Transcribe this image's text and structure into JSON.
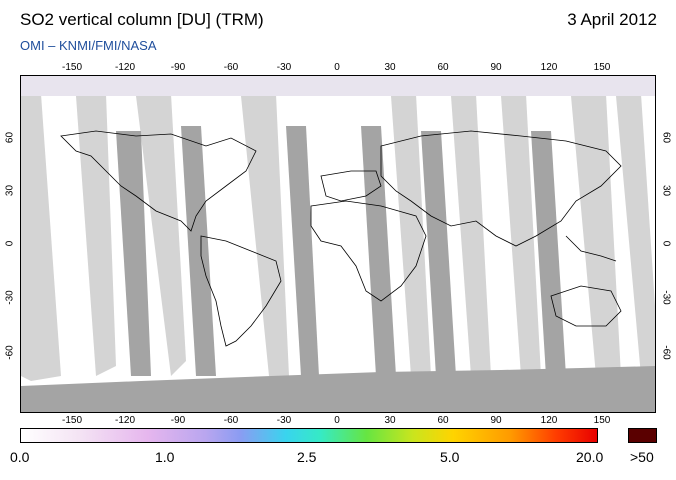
{
  "header": {
    "title": "SO2 vertical column [DU] (TRM)",
    "date": "3 April 2012",
    "credit": "OMI  –  KNMI/FMI/NASA"
  },
  "axes": {
    "lon_ticks": [
      "-150",
      "-120",
      "-90",
      "-60",
      "-30",
      "0",
      "30",
      "60",
      "90",
      "120",
      "150"
    ],
    "lat_ticks": [
      "60",
      "30",
      "0",
      "-30",
      "-60"
    ]
  },
  "colors": {
    "swath_dark": "#a4a4a4",
    "swath_light": "#d4d4d4",
    "background": "#ffffff",
    "over50": "#5a0000"
  },
  "colorbar": {
    "labels": [
      "0.0",
      "1.0",
      "2.5",
      "5.0",
      "20.0"
    ],
    "over_label": ">50"
  }
}
